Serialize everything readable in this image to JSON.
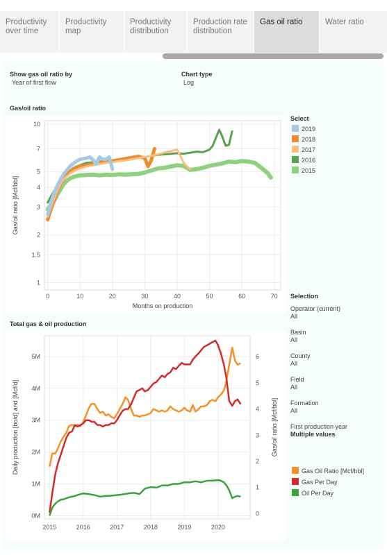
{
  "tabs": [
    {
      "label": "Productivity over time",
      "active": false
    },
    {
      "label": "Productivity map",
      "active": false
    },
    {
      "label": "Productivity distribution",
      "active": false
    },
    {
      "label": "Production rate distribution",
      "active": false
    },
    {
      "label": "Gas oil ratio",
      "active": true
    },
    {
      "label": "Water ratio",
      "active": false
    }
  ],
  "controls": {
    "show_label": "Show gas oil ratio by",
    "show_value": "Year of first flow",
    "chart_type_label": "Chart type",
    "chart_type_value": "Log"
  },
  "select_legend": {
    "title": "Select",
    "items": [
      {
        "label": "2019",
        "color": "#a6c9e6"
      },
      {
        "label": "2018",
        "color": "#f08a2a"
      },
      {
        "label": "2017",
        "color": "#fbbf7f"
      },
      {
        "label": "2016",
        "color": "#5aa24e"
      },
      {
        "label": "2015",
        "color": "#8fd17f"
      }
    ]
  },
  "filters": {
    "title": "Selection",
    "items": [
      {
        "label": "Operator (current)",
        "value": "All",
        "bold": false
      },
      {
        "label": "Basin",
        "value": "All",
        "bold": false
      },
      {
        "label": "County",
        "value": "All",
        "bold": false
      },
      {
        "label": "Field",
        "value": "All",
        "bold": false
      },
      {
        "label": "Formation",
        "value": "All",
        "bold": false
      },
      {
        "label": "First production year",
        "value": "Multiple values",
        "bold": true
      }
    ]
  },
  "prod_legend": {
    "items": [
      {
        "label": "Gas Oil Ratio [Mcf/bbl]",
        "color": "#f6912a"
      },
      {
        "label": "Gas Per Day",
        "color": "#d62a2a"
      },
      {
        "label": "Oil Per Day",
        "color": "#3da23d"
      }
    ]
  },
  "chart_data": [
    {
      "type": "line",
      "title": "Gas/oil ratio",
      "xlabel": "Months on production",
      "ylabel": "Gas/oil ratio [Mcf/bbl]",
      "yscale": "log",
      "xlim": [
        -1,
        72
      ],
      "ylim": [
        0.9,
        10.5
      ],
      "x_ticks": [
        0,
        10,
        20,
        30,
        40,
        50,
        60,
        70
      ],
      "y_ticks": [
        1,
        1.5,
        2,
        3,
        4,
        5,
        7,
        10
      ],
      "y_tick_labels": [
        "1",
        "1.5",
        "2",
        "3",
        "4",
        "5",
        "7",
        "10"
      ],
      "grid": true,
      "legend": "right",
      "series": [
        {
          "name": "2015",
          "color": "#8fd17f",
          "width": 6,
          "x": [
            0,
            1,
            2,
            3,
            4,
            5,
            6,
            7,
            8,
            9,
            10,
            12,
            14,
            16,
            18,
            20,
            22,
            24,
            26,
            28,
            30,
            32,
            34,
            36,
            38,
            40,
            42,
            44,
            46,
            48,
            50,
            52,
            54,
            56,
            58,
            60,
            62,
            64,
            66,
            68,
            69
          ],
          "y": [
            2.9,
            3.1,
            3.3,
            3.6,
            3.9,
            4.2,
            4.4,
            4.55,
            4.65,
            4.7,
            4.75,
            4.78,
            4.8,
            4.75,
            4.8,
            4.78,
            4.82,
            4.8,
            4.82,
            4.85,
            4.95,
            5.1,
            5.25,
            5.3,
            5.4,
            5.5,
            5.45,
            5.15,
            5.2,
            5.3,
            5.45,
            5.55,
            5.65,
            5.8,
            5.75,
            5.85,
            5.8,
            5.7,
            5.3,
            4.9,
            4.6
          ]
        },
        {
          "name": "2016",
          "color": "#5aa24e",
          "width": 3,
          "x": [
            0,
            1,
            2,
            3,
            4,
            5,
            6,
            7,
            8,
            10,
            12,
            14,
            16,
            18,
            20,
            22,
            24,
            26,
            28,
            30,
            32,
            34,
            36,
            38,
            40,
            42,
            44,
            46,
            48,
            50,
            51,
            52,
            53,
            54,
            55,
            56,
            57
          ],
          "y": [
            3.2,
            3.5,
            3.8,
            4.1,
            4.4,
            4.7,
            4.9,
            5.1,
            5.3,
            5.5,
            5.7,
            5.75,
            5.8,
            5.85,
            5.9,
            5.95,
            6.0,
            6.1,
            6.15,
            6.2,
            6.3,
            6.4,
            6.45,
            6.5,
            6.55,
            6.5,
            6.6,
            6.7,
            6.65,
            6.9,
            7.3,
            8.2,
            9.2,
            8.3,
            7.3,
            7.4,
            9.0
          ]
        },
        {
          "name": "2018",
          "color": "#f08a2a",
          "width": 5,
          "x": [
            0,
            1,
            2,
            3,
            4,
            5,
            6,
            7,
            8,
            10,
            12,
            14,
            16,
            18,
            20,
            22,
            24,
            26,
            28,
            30,
            31,
            32,
            33
          ],
          "y": [
            2.5,
            2.9,
            3.3,
            3.8,
            4.2,
            4.55,
            4.85,
            5.05,
            5.2,
            5.4,
            5.5,
            5.6,
            5.7,
            5.75,
            5.85,
            5.95,
            6.05,
            6.15,
            6.25,
            6.1,
            5.4,
            5.9,
            7.0
          ]
        },
        {
          "name": "2017",
          "color": "#fbbf7f",
          "width": 3,
          "x": [
            0,
            1,
            2,
            3,
            4,
            5,
            6,
            7,
            8,
            10,
            12,
            14,
            16,
            18,
            20,
            22,
            24,
            26,
            28,
            30,
            32,
            34,
            36,
            38,
            40,
            41,
            42,
            43,
            44
          ],
          "y": [
            2.6,
            3.0,
            3.4,
            3.8,
            4.2,
            4.5,
            4.7,
            4.9,
            5.05,
            5.25,
            5.4,
            5.5,
            5.6,
            5.7,
            5.75,
            5.85,
            5.9,
            6.0,
            6.1,
            6.2,
            6.3,
            6.45,
            6.6,
            6.75,
            6.9,
            6.3,
            5.7,
            5.4,
            5.2
          ]
        },
        {
          "name": "2019",
          "color": "#a6c9e6",
          "width": 5,
          "x": [
            0,
            1,
            2,
            3,
            4,
            5,
            6,
            7,
            8,
            9,
            10,
            11,
            12,
            13,
            14,
            15,
            16,
            17,
            18,
            19,
            20
          ],
          "y": [
            2.7,
            3.2,
            3.7,
            4.1,
            4.5,
            4.85,
            5.15,
            5.45,
            5.65,
            5.85,
            6.0,
            6.05,
            6.1,
            6.2,
            5.95,
            5.6,
            6.2,
            6.0,
            6.0,
            6.2,
            5.2
          ]
        }
      ]
    },
    {
      "type": "line",
      "title": "Total gas & oil production",
      "xlabel": "",
      "ylabel": "Daily production  [bo/d] and [Mcf/d]",
      "ylabel_right": "Gas/oil ratio [Mcf/bbl]",
      "x_range": [
        2014.85,
        2020.95
      ],
      "x_ticks": [
        2015,
        2016,
        2017,
        2018,
        2019,
        2020
      ],
      "ylim_left": [
        -0.1,
        5.65
      ],
      "y_ticks_left": [
        0,
        1,
        2,
        3,
        4,
        5
      ],
      "y_tick_labels_left": [
        "0M",
        "1M",
        "2M",
        "3M",
        "4M",
        "5M"
      ],
      "ylim_right": [
        -0.2,
        6.8
      ],
      "y_ticks_right": [
        0,
        1,
        2,
        3,
        4,
        5,
        6
      ],
      "grid": true,
      "legend": "right",
      "series": [
        {
          "name": "Gas Oil Ratio [Mcf/bbl]",
          "axis": "right",
          "color": "#f6912a",
          "x": [
            2015.0,
            2015.08,
            2015.17,
            2015.25,
            2015.33,
            2015.42,
            2015.5,
            2015.58,
            2015.67,
            2015.75,
            2015.83,
            2015.92,
            2016.0,
            2016.08,
            2016.17,
            2016.25,
            2016.33,
            2016.42,
            2016.5,
            2016.58,
            2016.67,
            2016.75,
            2016.83,
            2016.92,
            2017.0,
            2017.08,
            2017.17,
            2017.25,
            2017.33,
            2017.42,
            2017.5,
            2017.58,
            2017.67,
            2017.75,
            2017.83,
            2017.92,
            2018.0,
            2018.08,
            2018.17,
            2018.25,
            2018.33,
            2018.42,
            2018.5,
            2018.58,
            2018.67,
            2018.75,
            2018.83,
            2018.92,
            2019.0,
            2019.08,
            2019.17,
            2019.25,
            2019.33,
            2019.42,
            2019.5,
            2019.58,
            2019.67,
            2019.75,
            2019.83,
            2019.92,
            2020.0,
            2020.08,
            2020.17,
            2020.25,
            2020.33,
            2020.42,
            2020.5,
            2020.58,
            2020.67
          ],
          "y": [
            1.8,
            2.3,
            2.3,
            2.5,
            2.75,
            2.95,
            3.1,
            3.35,
            3.4,
            3.35,
            3.4,
            3.35,
            3.5,
            3.75,
            4.05,
            4.2,
            4.2,
            4.0,
            3.85,
            3.9,
            3.75,
            3.8,
            3.7,
            3.65,
            3.8,
            4.0,
            4.2,
            4.45,
            4.35,
            4.0,
            3.75,
            3.75,
            3.7,
            3.75,
            3.75,
            3.8,
            3.85,
            4.0,
            3.95,
            3.9,
            3.95,
            3.9,
            3.95,
            4.1,
            4.0,
            3.95,
            3.9,
            3.95,
            4.05,
            3.95,
            3.9,
            4.15,
            3.9,
            4.0,
            4.1,
            4.1,
            4.15,
            4.3,
            4.35,
            4.3,
            4.45,
            4.55,
            4.7,
            5.1,
            5.7,
            6.35,
            5.85,
            5.7,
            5.75
          ]
        },
        {
          "name": "Gas Per Day",
          "axis": "left",
          "color": "#d62a2a",
          "x": [
            2015.0,
            2015.08,
            2015.17,
            2015.25,
            2015.33,
            2015.42,
            2015.5,
            2015.58,
            2015.67,
            2015.75,
            2015.83,
            2015.92,
            2016.0,
            2016.08,
            2016.17,
            2016.25,
            2016.33,
            2016.42,
            2016.5,
            2016.58,
            2016.67,
            2016.75,
            2016.83,
            2016.92,
            2017.0,
            2017.08,
            2017.17,
            2017.25,
            2017.33,
            2017.42,
            2017.5,
            2017.58,
            2017.67,
            2017.75,
            2017.83,
            2017.92,
            2018.0,
            2018.08,
            2018.17,
            2018.25,
            2018.33,
            2018.42,
            2018.5,
            2018.58,
            2018.67,
            2018.75,
            2018.83,
            2018.92,
            2019.0,
            2019.08,
            2019.17,
            2019.25,
            2019.33,
            2019.42,
            2019.5,
            2019.58,
            2019.67,
            2019.75,
            2019.83,
            2019.92,
            2020.0,
            2020.08,
            2020.17,
            2020.25,
            2020.33,
            2020.42,
            2020.5,
            2020.58,
            2020.67
          ],
          "y": [
            0.1,
            0.7,
            1.3,
            1.65,
            1.9,
            2.2,
            2.45,
            2.6,
            2.65,
            2.85,
            2.8,
            2.85,
            2.9,
            3.0,
            3.0,
            2.95,
            2.95,
            2.85,
            2.85,
            2.8,
            2.85,
            2.85,
            2.9,
            2.9,
            3.0,
            3.15,
            3.3,
            3.35,
            3.35,
            3.5,
            3.7,
            3.9,
            3.95,
            4.0,
            3.9,
            3.95,
            4.05,
            4.15,
            4.2,
            4.3,
            4.4,
            4.35,
            4.45,
            4.5,
            4.65,
            4.6,
            4.7,
            4.8,
            4.75,
            4.75,
            4.75,
            4.9,
            5.0,
            5.1,
            5.2,
            5.3,
            5.35,
            5.4,
            5.45,
            5.5,
            5.35,
            5.1,
            4.75,
            4.3,
            3.6,
            3.45,
            3.6,
            3.65,
            3.5
          ]
        },
        {
          "name": "Oil Per Day",
          "axis": "left",
          "color": "#3da23d",
          "x": [
            2015.0,
            2015.08,
            2015.17,
            2015.25,
            2015.33,
            2015.42,
            2015.5,
            2015.58,
            2015.67,
            2015.75,
            2015.83,
            2015.92,
            2016.0,
            2016.17,
            2016.33,
            2016.5,
            2016.67,
            2016.83,
            2017.0,
            2017.17,
            2017.33,
            2017.5,
            2017.67,
            2017.83,
            2018.0,
            2018.17,
            2018.33,
            2018.5,
            2018.67,
            2018.83,
            2019.0,
            2019.17,
            2019.33,
            2019.5,
            2019.67,
            2019.83,
            2020.0,
            2020.08,
            2020.17,
            2020.25,
            2020.33,
            2020.42,
            2020.5,
            2020.58,
            2020.67
          ],
          "y": [
            0.0,
            0.25,
            0.38,
            0.45,
            0.5,
            0.52,
            0.55,
            0.58,
            0.6,
            0.62,
            0.65,
            0.68,
            0.7,
            0.68,
            0.65,
            0.6,
            0.62,
            0.63,
            0.65,
            0.67,
            0.7,
            0.72,
            0.68,
            0.85,
            0.9,
            0.88,
            0.95,
            0.95,
            1.0,
            1.0,
            1.05,
            1.05,
            1.08,
            1.05,
            1.1,
            1.1,
            1.12,
            1.1,
            1.05,
            0.95,
            0.8,
            0.55,
            0.6,
            0.62,
            0.6
          ]
        }
      ]
    }
  ]
}
